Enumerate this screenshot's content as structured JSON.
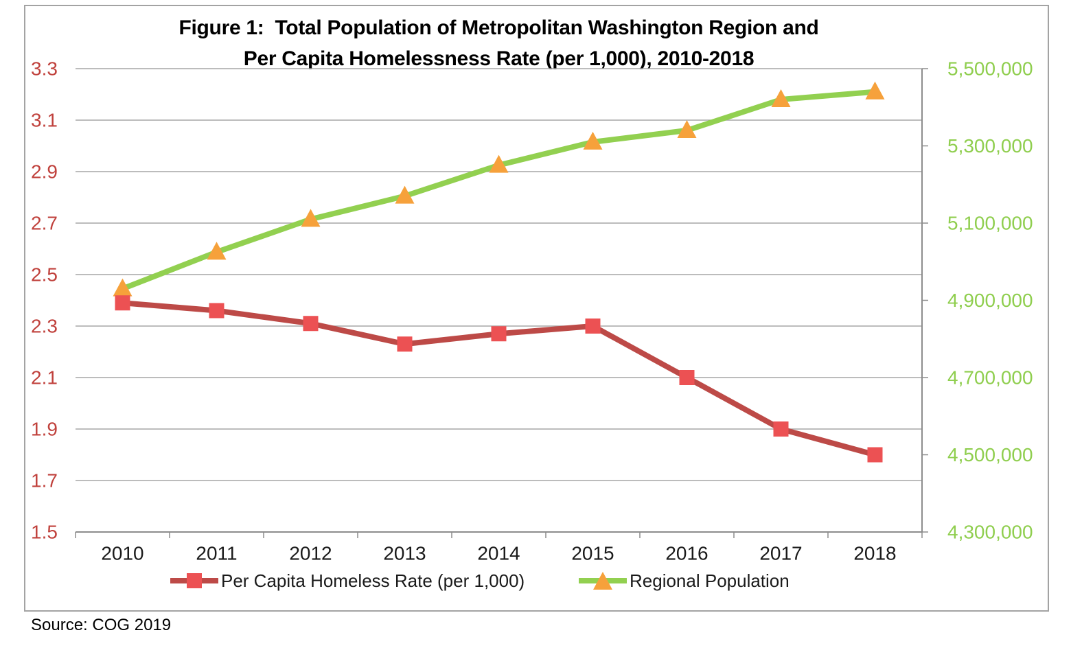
{
  "figure": {
    "title_line1": "Figure 1:  Total Population of Metropolitan Washington Region and",
    "title_line2": "Per Capita Homelessness Rate (per 1,000), 2010-2018",
    "source": "Source: COG 2019"
  },
  "colors": {
    "homeless_line": "#bd4a47",
    "homeless_marker": "#ec5153",
    "population_line": "#92d050",
    "population_marker": "#f6a13b",
    "left_axis_labels": "#c0413c",
    "right_axis_labels": "#8fce4e",
    "gridline": "#a6a6a6",
    "axis_line": "#8c8c8c",
    "frame_border": "#a3a3a3",
    "text": "#1a1a1a"
  },
  "chart_data": {
    "type": "line",
    "title": "Figure 1: Total Population of Metropolitan Washington Region and Per Capita Homelessness Rate (per 1,000), 2010-2018",
    "categories": [
      "2010",
      "2011",
      "2012",
      "2013",
      "2014",
      "2015",
      "2016",
      "2017",
      "2018"
    ],
    "series": [
      {
        "name": "Per Capita Homeless Rate (per 1,000)",
        "axis": "left",
        "marker": "square",
        "line_color": "#bd4a47",
        "marker_color": "#ec5153",
        "values": [
          2.39,
          2.36,
          2.31,
          2.23,
          2.27,
          2.3,
          2.1,
          1.9,
          1.8
        ]
      },
      {
        "name": "Regional Population",
        "axis": "right",
        "marker": "triangle",
        "line_color": "#92d050",
        "marker_color": "#f6a13b",
        "values": [
          4930000,
          5025000,
          5110000,
          5170000,
          5250000,
          5310000,
          5340000,
          5420000,
          5440000
        ]
      }
    ],
    "left_axis": {
      "min": 1.5,
      "max": 3.3,
      "step": 0.2,
      "tick_labels": [
        "3.3",
        "3.1",
        "2.9",
        "2.7",
        "2.5",
        "2.3",
        "2.1",
        "1.9",
        "1.7",
        "1.5"
      ],
      "label_color": "#c0413c"
    },
    "right_axis": {
      "min": 4300000,
      "max": 5500000,
      "step": 200000,
      "tick_labels": [
        "5,500,000",
        "5,300,000",
        "5,100,000",
        "4,900,000",
        "4,700,000",
        "4,500,000",
        "4,300,000"
      ],
      "label_color": "#8fce4e"
    },
    "x_axis": {
      "tick_labels": [
        "2010",
        "2011",
        "2012",
        "2013",
        "2014",
        "2015",
        "2016",
        "2017",
        "2018"
      ],
      "label_color": "#1a1a1a"
    },
    "grid": true,
    "legend_position": "bottom",
    "source": "Source: COG 2019"
  }
}
